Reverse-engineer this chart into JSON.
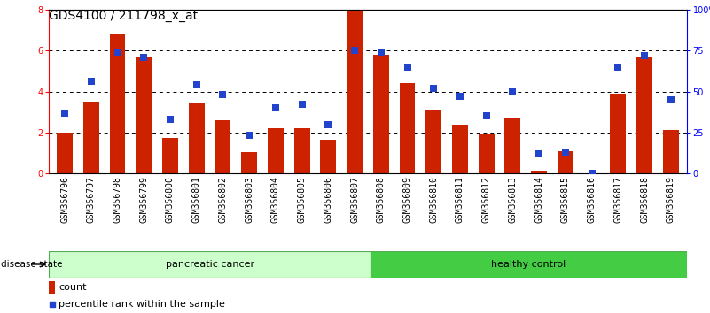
{
  "title": "GDS4100 / 211798_x_at",
  "samples": [
    "GSM356796",
    "GSM356797",
    "GSM356798",
    "GSM356799",
    "GSM356800",
    "GSM356801",
    "GSM356802",
    "GSM356803",
    "GSM356804",
    "GSM356805",
    "GSM356806",
    "GSM356807",
    "GSM356808",
    "GSM356809",
    "GSM356810",
    "GSM356811",
    "GSM356812",
    "GSM356813",
    "GSM356814",
    "GSM356815",
    "GSM356816",
    "GSM356817",
    "GSM356818",
    "GSM356819"
  ],
  "counts": [
    2.0,
    3.5,
    6.8,
    5.7,
    1.75,
    3.4,
    2.6,
    1.05,
    2.2,
    2.2,
    1.65,
    7.9,
    5.8,
    4.4,
    3.1,
    2.4,
    1.9,
    2.7,
    0.15,
    1.1,
    0.0,
    3.9,
    5.7,
    2.1
  ],
  "percentile_ranks": [
    37,
    56,
    74,
    71,
    33,
    54,
    48,
    23,
    40,
    42,
    30,
    75,
    74,
    65,
    52,
    47,
    35,
    50,
    12,
    13,
    0,
    65,
    72,
    45
  ],
  "bar_color": "#cc2200",
  "dot_color": "#2244cc",
  "ylim_left": [
    0,
    8
  ],
  "ylim_right": [
    0,
    100
  ],
  "yticks_left": [
    0,
    2,
    4,
    6,
    8
  ],
  "yticks_right": [
    0,
    25,
    50,
    75,
    100
  ],
  "ytick_labels_right": [
    "0",
    "25",
    "50",
    "75",
    "100%"
  ],
  "title_fontsize": 10,
  "tick_fontsize": 7,
  "legend_count_label": "count",
  "legend_percentile_label": "percentile rank within the sample",
  "dot_size": 40,
  "n_pancreatic": 12,
  "pancreatic_label": "pancreatic cancer",
  "healthy_label": "healthy control",
  "disease_state_label": "disease state",
  "pancreatic_color": "#ccffcc",
  "healthy_color": "#44cc44",
  "xlabel_bg_color": "#cccccc"
}
